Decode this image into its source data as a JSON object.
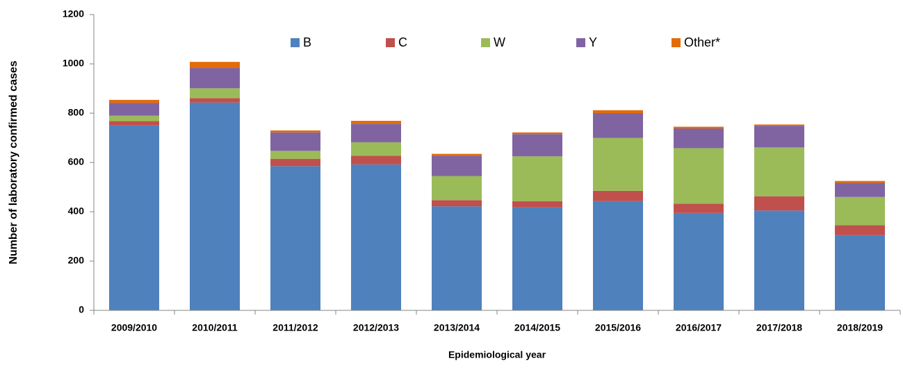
{
  "chart_data": {
    "type": "stacked_bar",
    "y_label": "Number of laboratory confirmed cases",
    "x_label": "Epidemiological year",
    "categories": [
      "2009/2010",
      "2010/2011",
      "2011/2012",
      "2012/2013",
      "2013/2014",
      "2014/2015",
      "2015/2016",
      "2016/2017",
      "2017/2018",
      "2018/2019"
    ],
    "series": [
      {
        "name": "B",
        "color": "#4f81bd",
        "values": [
          750,
          843,
          585,
          592,
          422,
          418,
          443,
          395,
          405,
          305
        ]
      },
      {
        "name": "C",
        "color": "#c0504d",
        "values": [
          18,
          18,
          30,
          35,
          25,
          25,
          42,
          38,
          58,
          40
        ]
      },
      {
        "name": "W",
        "color": "#9bbb59",
        "values": [
          22,
          40,
          32,
          55,
          98,
          182,
          215,
          225,
          198,
          115
        ]
      },
      {
        "name": "Y",
        "color": "#8064a2",
        "values": [
          52,
          82,
          75,
          75,
          82,
          90,
          100,
          80,
          88,
          57
        ]
      },
      {
        "name": "Other*",
        "color": "#e36c09",
        "values": [
          12,
          25,
          8,
          12,
          8,
          7,
          12,
          7,
          5,
          8
        ]
      }
    ],
    "ylim": [
      0,
      1200
    ],
    "yticks": [
      0,
      200,
      400,
      600,
      800,
      1000,
      1200
    ],
    "grid": false,
    "legend": "top"
  }
}
